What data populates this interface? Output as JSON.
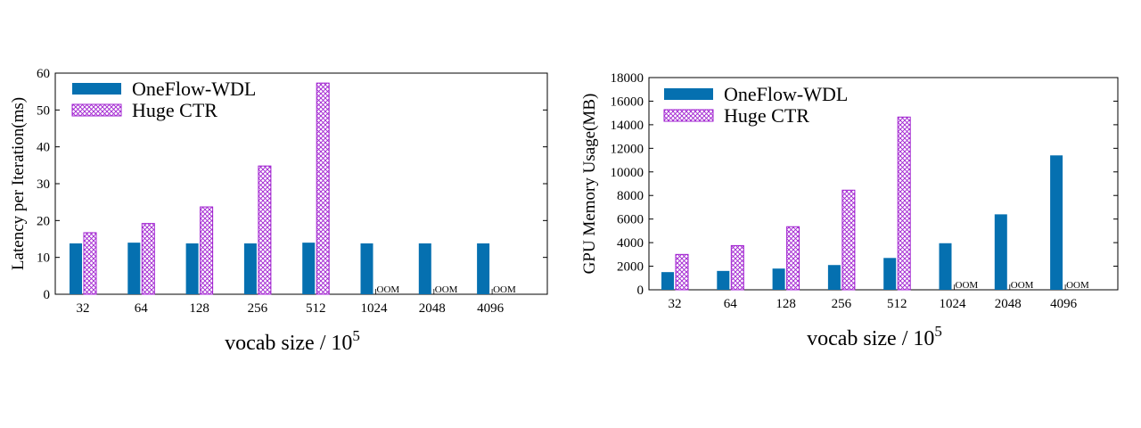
{
  "chart_data": [
    {
      "type": "bar",
      "categories": [
        "32",
        "64",
        "128",
        "256",
        "512",
        "1024",
        "2048",
        "4096"
      ],
      "xlabel_main": "vocab size / 10",
      "xlabel_sup": "5",
      "ylabel": "Latency per Iteration(ms)",
      "ylim": [
        0,
        60
      ],
      "yticks": [
        0,
        10,
        20,
        30,
        40,
        50,
        60
      ],
      "legend": "top-left",
      "series": [
        {
          "name": "OneFlow-WDL",
          "color": "#0570b0",
          "pattern": "solid",
          "values": [
            13.8,
            14.0,
            13.8,
            13.8,
            14.0,
            13.8,
            13.8,
            13.8
          ]
        },
        {
          "name": "Huge CTR",
          "color": "#a020d0",
          "pattern": "crosshatch",
          "values": [
            16.7,
            19.2,
            23.7,
            34.8,
            57.3,
            null,
            null,
            null
          ]
        }
      ],
      "annotations": [
        "OOM",
        "OOM",
        "OOM"
      ],
      "annotation_categories": [
        "1024",
        "2048",
        "4096"
      ]
    },
    {
      "type": "bar",
      "categories": [
        "32",
        "64",
        "128",
        "256",
        "512",
        "1024",
        "2048",
        "4096"
      ],
      "xlabel_main": "vocab size / 10",
      "xlabel_sup": "5",
      "ylabel": "GPU Memory Usage(MB)",
      "ylim": [
        0,
        18000
      ],
      "yticks": [
        0,
        2000,
        4000,
        6000,
        8000,
        10000,
        12000,
        14000,
        16000,
        18000
      ],
      "legend": "top-left",
      "series": [
        {
          "name": "OneFlow-WDL",
          "color": "#0570b0",
          "pattern": "solid",
          "values": [
            1500,
            1600,
            1800,
            2100,
            2700,
            3950,
            6400,
            11400
          ]
        },
        {
          "name": "Huge CTR",
          "color": "#a020d0",
          "pattern": "crosshatch",
          "values": [
            3000,
            3750,
            5350,
            8450,
            14650,
            null,
            null,
            null
          ]
        }
      ],
      "annotations": [
        "OOM",
        "OOM",
        "OOM"
      ],
      "annotation_categories": [
        "1024",
        "2048",
        "4096"
      ]
    }
  ]
}
